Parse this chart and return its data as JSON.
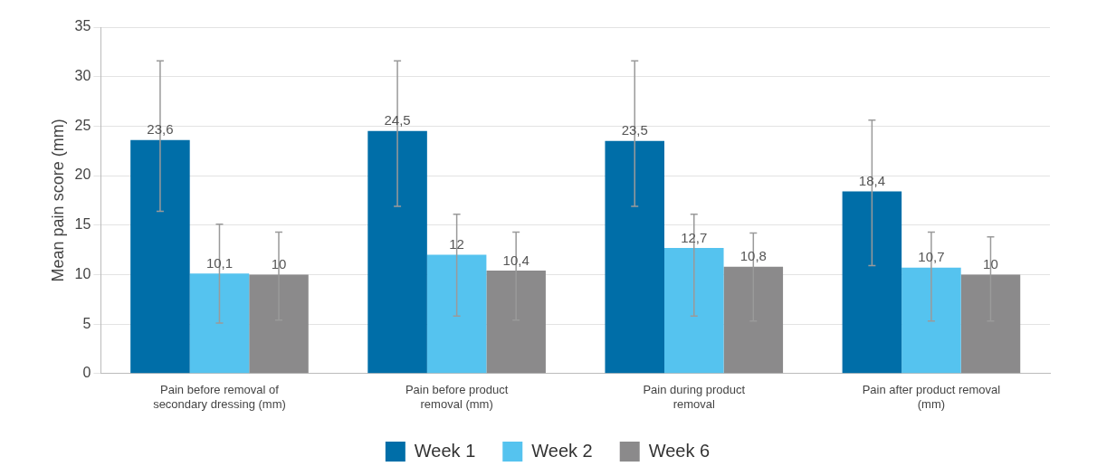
{
  "chart_data": {
    "type": "bar",
    "ylabel": "Mean pain score (mm)",
    "categories": [
      "Pain before removal of secondary dressing (mm)",
      "Pain before product removal (mm)",
      "Pain during product removal",
      "Pain after product removal (mm)"
    ],
    "series": [
      {
        "name": "Week 1",
        "color": "#006ea8",
        "values": [
          23.6,
          24.5,
          23.5,
          18.4
        ],
        "value_labels": [
          "23,6",
          "24,5",
          "23,5",
          "18,4"
        ],
        "errors": [
          [
            16.4,
            31.6
          ],
          [
            16.9,
            31.6
          ],
          [
            16.9,
            31.6
          ],
          [
            10.9,
            25.6
          ]
        ]
      },
      {
        "name": "Week 2",
        "color": "#55c3ef",
        "values": [
          10.1,
          12,
          12.7,
          10.7
        ],
        "value_labels": [
          "10,1",
          "12",
          "12,7",
          "10,7"
        ],
        "errors": [
          [
            5.1,
            15.1
          ],
          [
            5.8,
            16.1
          ],
          [
            5.8,
            16.1
          ],
          [
            5.3,
            14.3
          ]
        ]
      },
      {
        "name": "Week 6",
        "color": "#8b8a8b",
        "values": [
          10,
          10.4,
          10.8,
          10
        ],
        "value_labels": [
          "10",
          "10,4",
          "10,8",
          "10"
        ],
        "errors": [
          [
            5.4,
            14.3
          ],
          [
            5.4,
            14.3
          ],
          [
            5.3,
            14.2
          ],
          [
            5.3,
            13.8
          ]
        ]
      }
    ],
    "ylim": [
      0,
      35
    ],
    "yticks": [
      0,
      5,
      10,
      15,
      20,
      25,
      30,
      35
    ],
    "grid": "y",
    "legend": "bottom"
  }
}
